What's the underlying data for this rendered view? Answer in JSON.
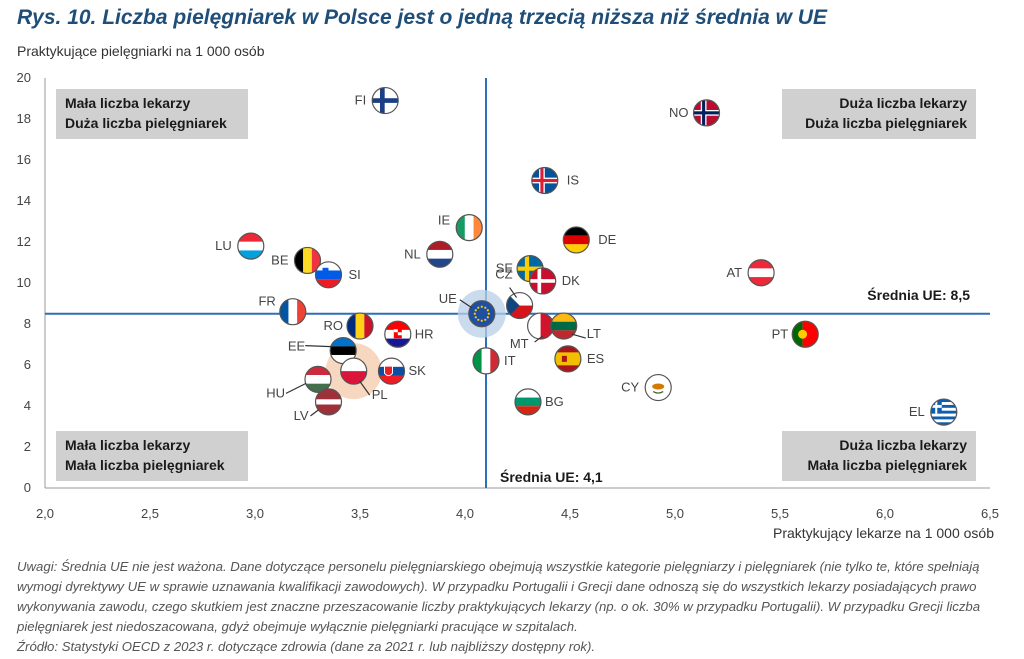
{
  "title": "Rys. 10. Liczba pielęgniarek w Polsce jest o jedną trzecią niższa niż średnia w UE",
  "notes": [
    "Uwagi: Średnia UE nie jest ważona. Dane dotyczące personelu pielęgniarskiego obejmują wszystkie kategorie pielęgniarzy i pielęgniarek (nie tylko te, które spełniają wymogi dyrektywy UE w sprawie uznawania kwalifikacji zawodowych). W przypadku Portugalii i Grecji dane odnoszą się do wszystkich lekarzy posiadających prawo wykonywania zawodu, czego skutkiem jest znaczne przeszacowanie liczby praktykujących lekarzy (np. o ok. 30% w przypadku Portugalii). W przypadku Grecji liczba pielęgniarek jest niedoszacowana, gdyż obejmuje wyłącznie pielęgniarki pracujące w szpitalach.",
    "Źródło: Statystyki OECD z 2023 r. dotyczące zdrowia (dane za 2021 r. lub najbliższy dostępny rok)."
  ],
  "chart_data": {
    "type": "scatter",
    "xlabel": "Praktykujący lekarze na 1 000 osób",
    "ylabel": "Praktykujące pielęgniarki na 1 000 osób",
    "xlim": [
      2.0,
      6.5
    ],
    "ylim": [
      0,
      20
    ],
    "xticks": [
      "2,0",
      "2,5",
      "3,0",
      "3,5",
      "4,0",
      "4,5",
      "5,0",
      "5,5",
      "6,0",
      "6,5"
    ],
    "yticks": [
      "0",
      "2",
      "4",
      "6",
      "8",
      "10",
      "12",
      "14",
      "16",
      "18",
      "20"
    ],
    "grid": false,
    "eu_average": {
      "x": 4.1,
      "y": 8.5,
      "x_label": "Średnia UE: 4,1",
      "y_label": "Średnia UE: 8,5"
    },
    "quadrants": {
      "top_left": [
        "Mała liczba lekarzy",
        "Duża liczba pielęgniarek"
      ],
      "top_right": [
        "Duża liczba lekarzy",
        "Duża liczba pielęgniarek"
      ],
      "bottom_left": [
        "Mała liczba lekarzy",
        "Mała liczba pielęgniarek"
      ],
      "bottom_right": [
        "Duża liczba lekarzy",
        "Mała liczba pielęgniarek"
      ]
    },
    "points": [
      {
        "label": "FI",
        "x": 3.62,
        "y": 18.9,
        "flag": "fi"
      },
      {
        "label": "NO",
        "x": 5.15,
        "y": 18.3,
        "flag": "no"
      },
      {
        "label": "IS",
        "x": 4.38,
        "y": 15.0,
        "flag": "is"
      },
      {
        "label": "IE",
        "x": 4.02,
        "y": 12.7,
        "flag": "ie"
      },
      {
        "label": "DE",
        "x": 4.53,
        "y": 12.1,
        "flag": "de"
      },
      {
        "label": "LU",
        "x": 2.98,
        "y": 11.8,
        "flag": "lu"
      },
      {
        "label": "NL",
        "x": 3.88,
        "y": 11.4,
        "flag": "nl"
      },
      {
        "label": "BE",
        "x": 3.25,
        "y": 11.1,
        "flag": "be"
      },
      {
        "label": "SE",
        "x": 4.31,
        "y": 10.7,
        "flag": "se"
      },
      {
        "label": "SI",
        "x": 3.35,
        "y": 10.4,
        "flag": "si"
      },
      {
        "label": "AT",
        "x": 5.41,
        "y": 10.5,
        "flag": "at"
      },
      {
        "label": "DK",
        "x": 4.37,
        "y": 10.1,
        "flag": "dk"
      },
      {
        "label": "CZ",
        "x": 4.26,
        "y": 8.9,
        "flag": "cz"
      },
      {
        "label": "FR",
        "x": 3.18,
        "y": 8.6,
        "flag": "fr"
      },
      {
        "label": "UE",
        "x": 4.08,
        "y": 8.5,
        "flag": "eu"
      },
      {
        "label": "RO",
        "x": 3.5,
        "y": 7.9,
        "flag": "ro"
      },
      {
        "label": "MT",
        "x": 4.36,
        "y": 7.9,
        "flag": "mt"
      },
      {
        "label": "LT",
        "x": 4.47,
        "y": 7.9,
        "flag": "lt"
      },
      {
        "label": "HR",
        "x": 3.68,
        "y": 7.5,
        "flag": "hr"
      },
      {
        "label": "PT",
        "x": 5.62,
        "y": 7.5,
        "flag": "pt"
      },
      {
        "label": "EE",
        "x": 3.42,
        "y": 6.7,
        "flag": "ee"
      },
      {
        "label": "IT",
        "x": 4.1,
        "y": 6.2,
        "flag": "it"
      },
      {
        "label": "ES",
        "x": 4.49,
        "y": 6.3,
        "flag": "es"
      },
      {
        "label": "PL",
        "x": 3.47,
        "y": 5.7,
        "flag": "pl"
      },
      {
        "label": "SK",
        "x": 3.65,
        "y": 5.7,
        "flag": "sk"
      },
      {
        "label": "HU",
        "x": 3.3,
        "y": 5.3,
        "flag": "hu"
      },
      {
        "label": "CY",
        "x": 4.92,
        "y": 4.9,
        "flag": "cy"
      },
      {
        "label": "LV",
        "x": 3.35,
        "y": 4.2,
        "flag": "lv"
      },
      {
        "label": "BG",
        "x": 4.3,
        "y": 4.2,
        "flag": "bg"
      },
      {
        "label": "EL",
        "x": 6.28,
        "y": 3.7,
        "flag": "el"
      }
    ]
  },
  "colors": {
    "title": "#1f4e79",
    "avg_line": "#2f6fb5",
    "quadrant_box": "#d0d0d0",
    "pl_highlight": "#f5c6a5",
    "eu_highlight": "#b8cfe8"
  }
}
